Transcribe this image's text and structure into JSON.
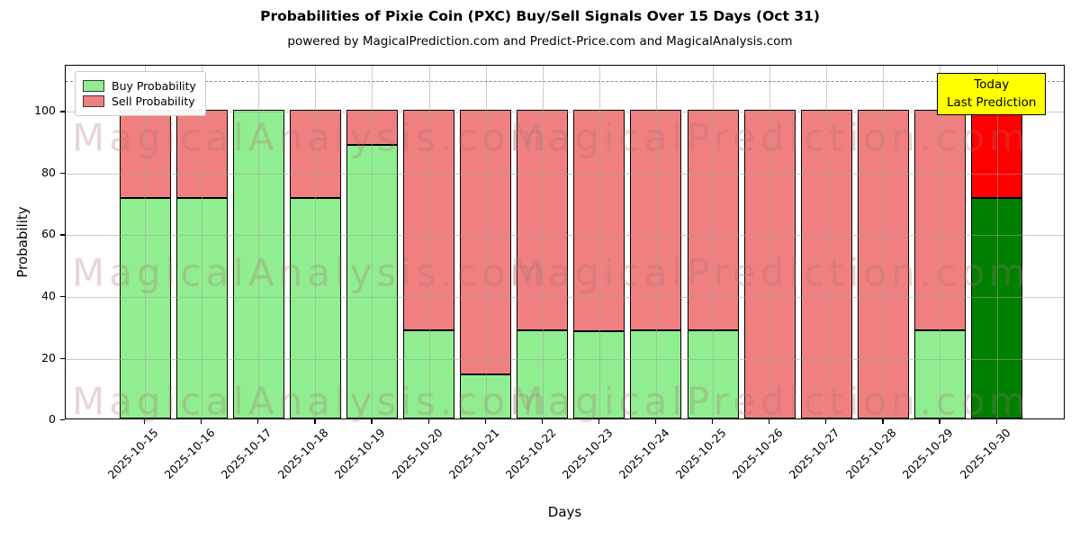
{
  "header": {
    "title": "Probabilities of Pixie Coin (PXC) Buy/Sell Signals Over 15 Days (Oct 31)",
    "subtitle": "powered by MagicalPrediction.com and Predict-Price.com and MagicalAnalysis.com"
  },
  "legend": {
    "buy_label": "Buy Probability",
    "sell_label": "Sell Probability"
  },
  "annotation": {
    "line1": "Today",
    "line2": "Last Prediction"
  },
  "axes": {
    "xlabel": "Days",
    "ylabel": "Probability",
    "yticks": [
      0,
      20,
      40,
      60,
      80,
      100
    ],
    "ylim": [
      0,
      115
    ],
    "dashed_line_y": 110,
    "grid": true
  },
  "watermarks": {
    "left_text": "MagicalAnalysis.com",
    "right_text": "MagicalPrediction.com"
  },
  "colors": {
    "buy": "#90ee90",
    "sell": "#f08080",
    "today_buy": "#008000",
    "today_sell": "#ff0000",
    "bar_edge": "#000000",
    "grid": "rgba(160,160,160,0.55)",
    "dashed_line": "#8a8a8a",
    "annotation_bg": "#ffff00",
    "watermark": "rgba(170,110,110,0.28)"
  },
  "chart_data": {
    "type": "bar",
    "stacked": true,
    "title": "Probabilities of Pixie Coin (PXC) Buy/Sell Signals Over 15 Days (Oct 31)",
    "xlabel": "Days",
    "ylabel": "Probability",
    "ylim": [
      0,
      115
    ],
    "legend_position": "upper left",
    "categories": [
      "2025-10-15",
      "2025-10-16",
      "2025-10-17",
      "2025-10-18",
      "2025-10-19",
      "2025-10-20",
      "2025-10-21",
      "2025-10-22",
      "2025-10-23",
      "2025-10-24",
      "2025-10-25",
      "2025-10-26",
      "2025-10-27",
      "2025-10-28",
      "2025-10-29",
      "2025-10-30"
    ],
    "series": [
      {
        "name": "Buy Probability",
        "values": [
          71.4,
          71.4,
          100,
          71.4,
          88.6,
          28.6,
          14.3,
          28.6,
          28.3,
          28.6,
          28.6,
          0,
          0,
          0,
          28.6,
          71.4
        ]
      },
      {
        "name": "Sell Probability",
        "values": [
          28.6,
          28.6,
          0,
          28.6,
          11.4,
          71.4,
          85.7,
          71.4,
          71.7,
          71.4,
          71.4,
          100,
          100,
          100,
          71.4,
          28.6
        ]
      }
    ],
    "highlight_last_bar": true,
    "highlight_note": "Last bar (2025-10-30) drawn with dark green buy and bright red sell colors marked Today / Last Prediction"
  }
}
